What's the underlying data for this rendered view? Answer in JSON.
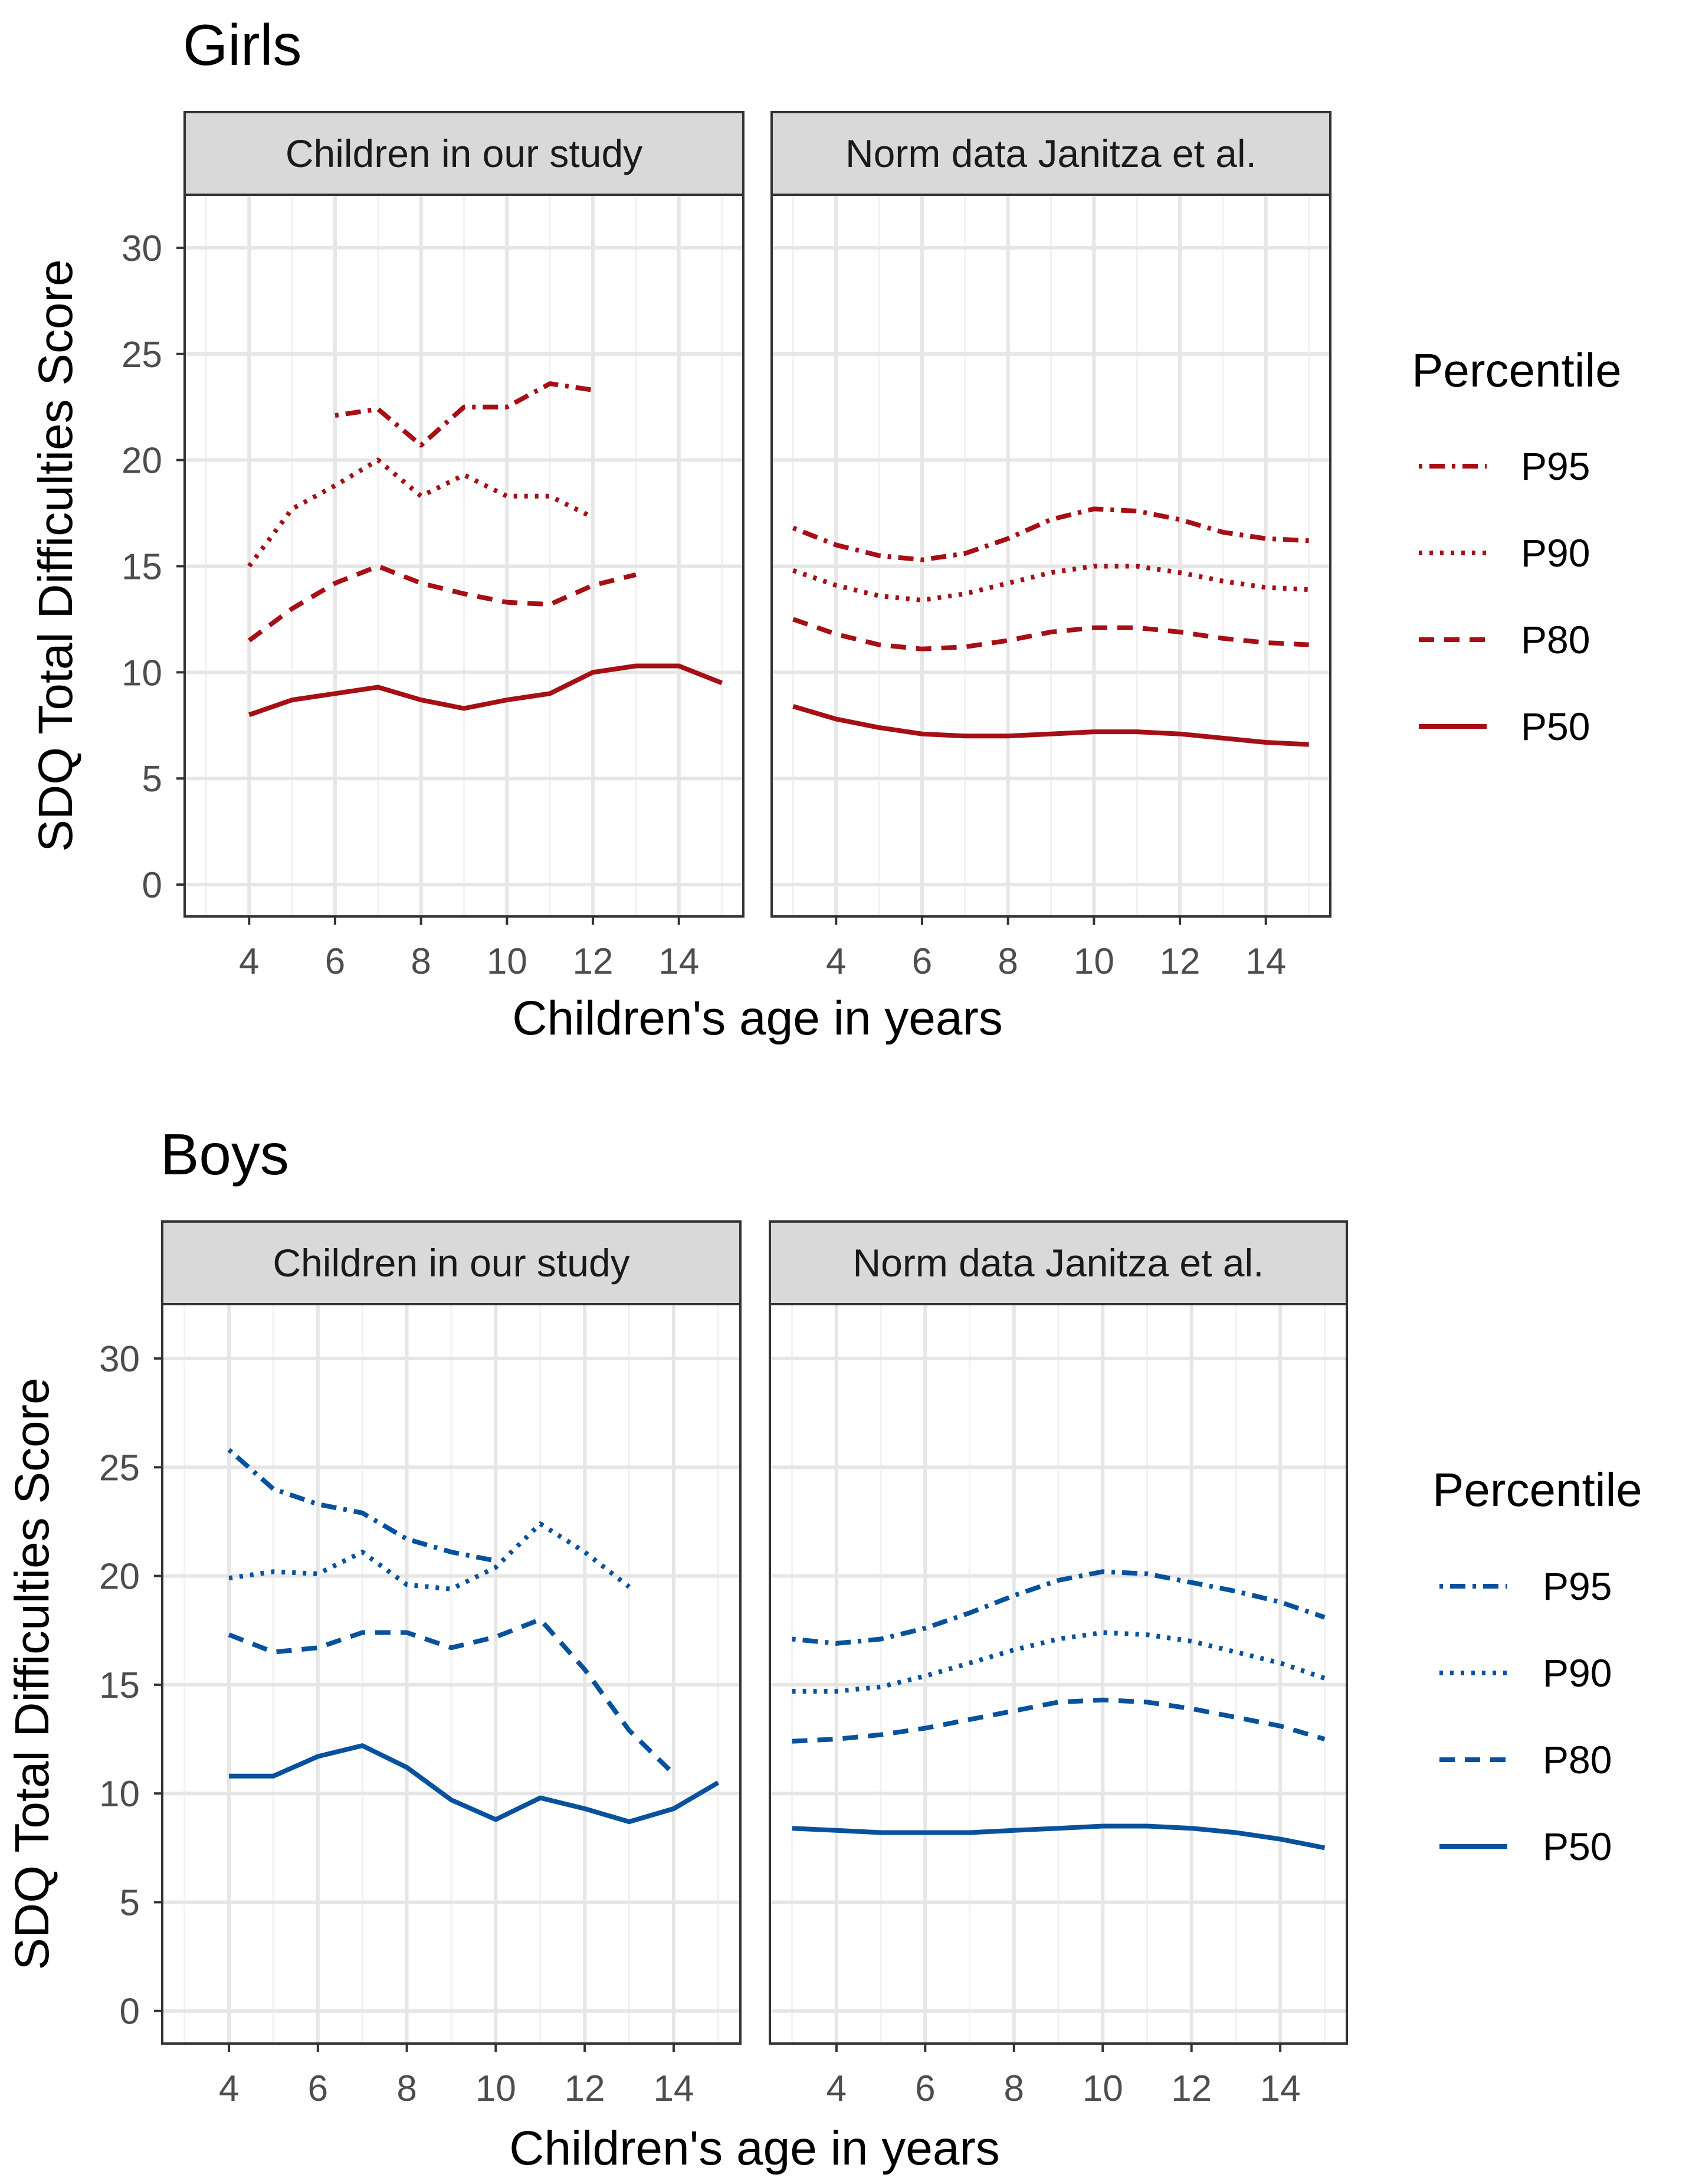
{
  "chart_data": [
    {
      "type": "line",
      "title": "Girls",
      "color": "#A50F15",
      "xlabel": "Children's age in years",
      "ylabel": "SDQ Total Difficulties Score",
      "ylim": [
        -1.5,
        32.5
      ],
      "yticks": [
        0,
        5,
        10,
        15,
        20,
        25,
        30
      ],
      "xticks": [
        4,
        6,
        8,
        10,
        12,
        14
      ],
      "legend": {
        "title": "Percentile",
        "entries": [
          {
            "label": "P95",
            "dash": "dotdash"
          },
          {
            "label": "P90",
            "dash": "dotted"
          },
          {
            "label": "P80",
            "dash": "dashed"
          },
          {
            "label": "P50",
            "dash": "solid"
          }
        ]
      },
      "panels": [
        {
          "strip": "Children in our study",
          "xlim": [
            2.5,
            15.5
          ],
          "series": [
            {
              "name": "P95",
              "x": [
                6,
                7,
                8,
                9,
                10,
                11,
                12
              ],
              "y": [
                22.1,
                22.4,
                20.7,
                22.5,
                22.5,
                23.6,
                23.3
              ]
            },
            {
              "name": "P90",
              "x": [
                4,
                5,
                6,
                7,
                8,
                9,
                10,
                11,
                12
              ],
              "y": [
                15.0,
                17.7,
                18.8,
                20.0,
                18.3,
                19.3,
                18.3,
                18.3,
                17.3
              ]
            },
            {
              "name": "P80",
              "x": [
                4,
                5,
                6,
                7,
                8,
                9,
                10,
                11,
                12,
                13
              ],
              "y": [
                11.5,
                13.0,
                14.2,
                15.0,
                14.2,
                13.7,
                13.3,
                13.2,
                14.1,
                14.6
              ]
            },
            {
              "name": "P50",
              "x": [
                4,
                5,
                6,
                7,
                8,
                9,
                10,
                11,
                12,
                13,
                14,
                15
              ],
              "y": [
                8.0,
                8.7,
                9.0,
                9.3,
                8.7,
                8.3,
                8.7,
                9.0,
                10.0,
                10.3,
                10.3,
                9.5
              ]
            }
          ]
        },
        {
          "strip": "Norm data Janitza et al.",
          "xlim": [
            2.5,
            15.5
          ],
          "series": [
            {
              "name": "P95",
              "x": [
                3,
                4,
                5,
                6,
                7,
                8,
                9,
                10,
                11,
                12,
                13,
                14,
                15
              ],
              "y": [
                16.8,
                16.0,
                15.5,
                15.3,
                15.6,
                16.3,
                17.2,
                17.7,
                17.6,
                17.2,
                16.6,
                16.3,
                16.2
              ]
            },
            {
              "name": "P90",
              "x": [
                3,
                4,
                5,
                6,
                7,
                8,
                9,
                10,
                11,
                12,
                13,
                14,
                15
              ],
              "y": [
                14.8,
                14.1,
                13.6,
                13.4,
                13.7,
                14.2,
                14.7,
                15.0,
                15.0,
                14.7,
                14.3,
                14.0,
                13.9
              ]
            },
            {
              "name": "P80",
              "x": [
                3,
                4,
                5,
                6,
                7,
                8,
                9,
                10,
                11,
                12,
                13,
                14,
                15
              ],
              "y": [
                12.5,
                11.8,
                11.3,
                11.1,
                11.2,
                11.5,
                11.9,
                12.1,
                12.1,
                11.9,
                11.6,
                11.4,
                11.3
              ]
            },
            {
              "name": "P50",
              "x": [
                3,
                4,
                5,
                6,
                7,
                8,
                9,
                10,
                11,
                12,
                13,
                14,
                15
              ],
              "y": [
                8.4,
                7.8,
                7.4,
                7.1,
                7.0,
                7.0,
                7.1,
                7.2,
                7.2,
                7.1,
                6.9,
                6.7,
                6.6
              ]
            }
          ]
        }
      ]
    },
    {
      "type": "line",
      "title": "Boys",
      "color": "#08519C",
      "xlabel": "Children's age in years",
      "ylabel": "SDQ Total Difficulties Score",
      "ylim": [
        -1.5,
        32.5
      ],
      "yticks": [
        0,
        5,
        10,
        15,
        20,
        25,
        30
      ],
      "xticks": [
        4,
        6,
        8,
        10,
        12,
        14
      ],
      "legend": {
        "title": "Percentile",
        "entries": [
          {
            "label": "P95",
            "dash": "dotdash"
          },
          {
            "label": "P90",
            "dash": "dotted"
          },
          {
            "label": "P80",
            "dash": "dashed"
          },
          {
            "label": "P50",
            "dash": "solid"
          }
        ]
      },
      "panels": [
        {
          "strip": "Children in our study",
          "xlim": [
            2.5,
            15.5
          ],
          "series": [
            {
              "name": "P95",
              "x": [
                4,
                5,
                6,
                7,
                8,
                9,
                10
              ],
              "y": [
                25.8,
                24.0,
                23.3,
                22.9,
                21.7,
                21.1,
                20.7
              ]
            },
            {
              "name": "P90",
              "x": [
                4,
                5,
                6,
                7,
                8,
                9,
                10,
                11,
                12,
                13
              ],
              "y": [
                19.9,
                20.2,
                20.1,
                21.1,
                19.6,
                19.4,
                20.4,
                22.4,
                21.1,
                19.5
              ]
            },
            {
              "name": "P80",
              "x": [
                4,
                5,
                6,
                7,
                8,
                9,
                10,
                11,
                12,
                13,
                14
              ],
              "y": [
                17.3,
                16.5,
                16.7,
                17.4,
                17.4,
                16.7,
                17.2,
                18.0,
                15.7,
                12.9,
                10.9
              ]
            },
            {
              "name": "P50",
              "x": [
                4,
                5,
                6,
                7,
                8,
                9,
                10,
                11,
                12,
                13,
                14,
                15
              ],
              "y": [
                10.8,
                10.8,
                11.7,
                12.2,
                11.2,
                9.7,
                8.8,
                9.8,
                9.3,
                8.7,
                9.3,
                10.5
              ]
            }
          ]
        },
        {
          "strip": "Norm data Janitza et al.",
          "xlim": [
            2.5,
            15.5
          ],
          "series": [
            {
              "name": "P95",
              "x": [
                3,
                4,
                5,
                6,
                7,
                8,
                9,
                10,
                11,
                12,
                13,
                14,
                15
              ],
              "y": [
                17.1,
                16.9,
                17.1,
                17.6,
                18.3,
                19.1,
                19.8,
                20.2,
                20.1,
                19.7,
                19.3,
                18.8,
                18.1
              ]
            },
            {
              "name": "P90",
              "x": [
                3,
                4,
                5,
                6,
                7,
                8,
                9,
                10,
                11,
                12,
                13,
                14,
                15
              ],
              "y": [
                14.7,
                14.7,
                14.9,
                15.4,
                16.0,
                16.6,
                17.1,
                17.4,
                17.3,
                17.0,
                16.5,
                16.0,
                15.3
              ]
            },
            {
              "name": "P80",
              "x": [
                3,
                4,
                5,
                6,
                7,
                8,
                9,
                10,
                11,
                12,
                13,
                14,
                15
              ],
              "y": [
                12.4,
                12.5,
                12.7,
                13.0,
                13.4,
                13.8,
                14.2,
                14.3,
                14.2,
                13.9,
                13.5,
                13.1,
                12.5
              ]
            },
            {
              "name": "P50",
              "x": [
                3,
                4,
                5,
                6,
                7,
                8,
                9,
                10,
                11,
                12,
                13,
                14,
                15
              ],
              "y": [
                8.4,
                8.3,
                8.2,
                8.2,
                8.2,
                8.3,
                8.4,
                8.5,
                8.5,
                8.4,
                8.2,
                7.9,
                7.5
              ]
            }
          ]
        }
      ]
    }
  ]
}
